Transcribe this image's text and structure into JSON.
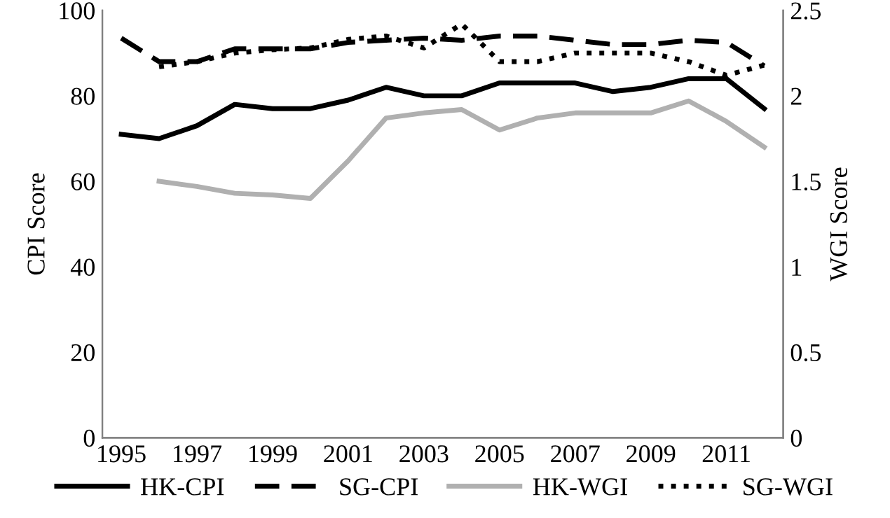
{
  "chart_data": {
    "type": "line",
    "ylabel": "CPI Score",
    "y2label": "WGI Score",
    "categories": [
      "1995",
      null,
      "1997",
      null,
      "1999",
      null,
      "2001",
      null,
      "2003",
      null,
      "2005",
      null,
      "2007",
      null,
      "2009",
      null,
      "2011",
      null
    ],
    "series": [
      {
        "name": "HK-CPI",
        "color": "#000000",
        "line_style": "solid",
        "values": [
          71,
          70,
          73,
          78,
          77,
          77,
          79,
          82,
          80,
          80,
          83,
          83,
          83,
          81,
          82,
          84,
          84,
          77
        ]
      },
      {
        "name": "SG-CPI",
        "color": "#000000",
        "line_style": "dashed",
        "values": [
          93.5,
          88,
          88,
          91,
          91,
          91,
          92.5,
          93,
          93.5,
          93,
          94,
          94,
          93,
          92,
          92,
          93,
          92.5,
          87
        ]
      },
      {
        "name": "HK-WGI",
        "color": "#b0b0b0",
        "line_style": "solid",
        "axis": "y2",
        "values": [
          null,
          1.5,
          1.47,
          1.43,
          1.42,
          1.4,
          1.62,
          1.87,
          1.9,
          1.92,
          1.8,
          1.87,
          1.9,
          1.9,
          1.9,
          1.97,
          1.85,
          1.7
        ]
      },
      {
        "name": "SG-WGI",
        "color": "#000000",
        "line_style": "dotted",
        "axis": "y2",
        "values": [
          null,
          2.17,
          2.2,
          2.25,
          2.27,
          2.28,
          2.33,
          2.35,
          2.28,
          2.42,
          2.2,
          2.2,
          2.25,
          2.25,
          2.25,
          2.2,
          2.12,
          2.18
        ]
      }
    ],
    "ylim": [
      0,
      100
    ],
    "yticks": [
      0,
      20,
      40,
      60,
      80,
      100
    ],
    "y2lim": [
      0,
      2.5
    ],
    "y2ticks": [
      0,
      {
        "value": 0.5,
        "label": "0.5"
      },
      1,
      {
        "value": 1.5,
        "label": "1.5"
      },
      2,
      {
        "value": 2.5,
        "label": "2.5"
      }
    ],
    "grid": false,
    "legend": "bottom"
  }
}
